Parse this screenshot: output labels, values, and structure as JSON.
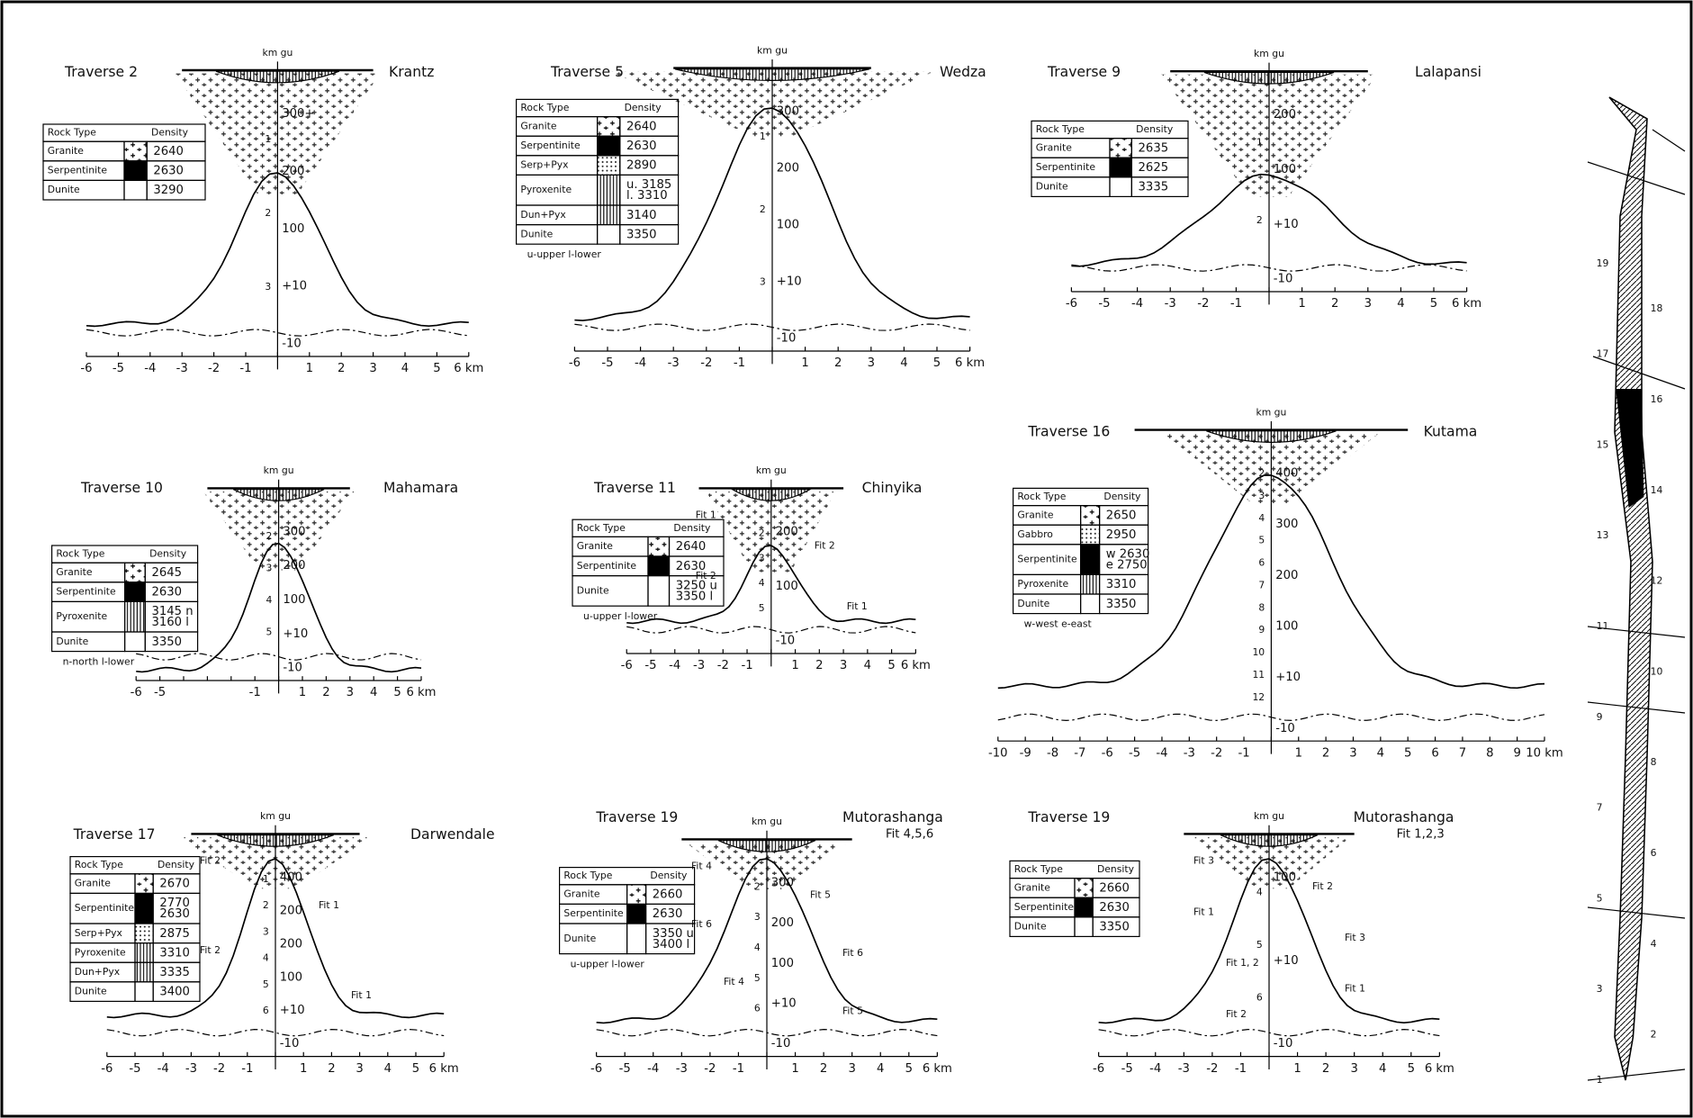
{
  "panels": [
    {
      "title": "Traverse 2",
      "place": "Krantz",
      "header": "km gu",
      "gu": [
        "300+",
        "200",
        "100",
        "+10",
        "-10"
      ],
      "depth": [
        "1",
        "2",
        "3"
      ],
      "x_labels": [
        "-6",
        "-5",
        "-4",
        "-3",
        "-2",
        "-1",
        null,
        "1",
        "2",
        "3",
        "4",
        "5",
        "6 km"
      ],
      "table": {
        "header": [
          "Rock Type",
          "Density"
        ],
        "rows": [
          {
            "rock": "Granite",
            "fill": "cross",
            "density": [
              "2640"
            ]
          },
          {
            "rock": "Serpentinite",
            "fill": "solid",
            "density": [
              "2630"
            ]
          },
          {
            "rock": "Dunite",
            "fill": "none",
            "density": [
              "3290"
            ]
          }
        ]
      }
    },
    {
      "title": "Traverse 5",
      "place": "Wedza",
      "header": "km gu",
      "gu": [
        "300",
        "200",
        "100",
        "+10",
        "-10"
      ],
      "depth": [
        "1",
        "2",
        "3"
      ],
      "x_labels": [
        "-6",
        "-5",
        "-4",
        "-3",
        "-2",
        "-1",
        null,
        "1",
        "2",
        "3",
        "4",
        "5",
        "6 km"
      ],
      "note": "u-upper  l-lower",
      "table": {
        "header": [
          "Rock Type",
          "Density"
        ],
        "rows": [
          {
            "rock": "Granite",
            "fill": "cross",
            "density": [
              "2640"
            ]
          },
          {
            "rock": "Serpentinite",
            "fill": "solid",
            "density": [
              "2630"
            ]
          },
          {
            "rock": "Serp+Pyx",
            "fill": "dots",
            "density": [
              "2890"
            ]
          },
          {
            "rock": "Pyroxenite",
            "fill": "lines",
            "density": [
              "u. 3185",
              "l. 3310"
            ]
          },
          {
            "rock": "Dun+Pyx",
            "fill": "lines",
            "density": [
              "3140"
            ]
          },
          {
            "rock": "Dunite",
            "fill": "none",
            "density": [
              "3350"
            ]
          }
        ]
      }
    },
    {
      "title": "Traverse 9",
      "place": "Lalapansi",
      "header": "km gu",
      "gu": [
        "200",
        "100",
        "+10",
        "-10"
      ],
      "depth": [
        "1",
        "2"
      ],
      "x_labels": [
        "-6",
        "-5",
        "-4",
        "-3",
        "-2",
        "-1",
        null,
        "1",
        "2",
        "3",
        "4",
        "5",
        "6 km"
      ],
      "table": {
        "header": [
          "Rock Type",
          "Density"
        ],
        "rows": [
          {
            "rock": "Granite",
            "fill": "cross",
            "density": [
              "2635"
            ]
          },
          {
            "rock": "Serpentinite",
            "fill": "solid",
            "density": [
              "2625"
            ]
          },
          {
            "rock": "Dunite",
            "fill": "none",
            "density": [
              "3335"
            ]
          }
        ]
      }
    },
    {
      "title": "Traverse 10",
      "place": "Mahamara",
      "header": "km gu",
      "gu": [
        "300",
        "200",
        "100",
        "+10",
        "-10"
      ],
      "depth": [
        "2",
        "3",
        "4",
        "5"
      ],
      "x_labels": [
        "-6",
        "-5",
        null,
        null,
        null,
        "-1",
        null,
        "1",
        "2",
        "3",
        "4",
        "5",
        "6 km"
      ],
      "note": "n-north  l-lower",
      "table": {
        "header": [
          "Rock Type",
          "Density"
        ],
        "rows": [
          {
            "rock": "Granite",
            "fill": "cross",
            "density": [
              "2645"
            ]
          },
          {
            "rock": "Serpentinite",
            "fill": "solid",
            "density": [
              "2630"
            ]
          },
          {
            "rock": "Pyroxenite",
            "fill": "lines",
            "density": [
              "3145 n",
              "3160 l"
            ]
          },
          {
            "rock": "Dunite",
            "fill": "none",
            "density": [
              "3350"
            ]
          }
        ]
      }
    },
    {
      "title": "Traverse 11",
      "place": "Chinyika",
      "header": "km gu",
      "gu": [
        "200",
        "100",
        "-10"
      ],
      "depth": [
        "2",
        "3",
        "4",
        "5"
      ],
      "fits": [
        "Fit 1",
        "Fit 2",
        "Fit 2",
        "Fit 1"
      ],
      "x_labels": [
        "-6",
        "-5",
        "-4",
        "-3",
        "-2",
        "-1",
        null,
        "1",
        "2",
        "3",
        "4",
        "5",
        "6 km"
      ],
      "note": "u-upper  l-lower",
      "table": {
        "header": [
          "Rock Type",
          "Density"
        ],
        "rows": [
          {
            "rock": "Granite",
            "fill": "cross",
            "density": [
              "2640"
            ]
          },
          {
            "rock": "Serpentinite",
            "fill": "solid",
            "density": [
              "2630"
            ]
          },
          {
            "rock": "Dunite",
            "fill": "none",
            "density": [
              "3250 u",
              "3350 l"
            ]
          }
        ]
      }
    },
    {
      "title": "Traverse 16",
      "place": "Kutama",
      "header": "km gu",
      "gu": [
        "400",
        "300",
        "200",
        "100",
        "+10",
        "-10"
      ],
      "depth": [
        "2",
        "3",
        "4",
        "5",
        "6",
        "7",
        "8",
        "9",
        "10",
        "11",
        "12"
      ],
      "x_labels": [
        "-10",
        "-9",
        "-8",
        "-7",
        "-6",
        "-5",
        "-4",
        "-3",
        "-2",
        "-1",
        null,
        "1",
        "2",
        "3",
        "4",
        "5",
        "6",
        "7",
        "8",
        "9",
        "10 km"
      ],
      "note": "w-west  e-east",
      "table": {
        "header": [
          "Rock Type",
          "Density"
        ],
        "rows": [
          {
            "rock": "Granite",
            "fill": "cross",
            "density": [
              "2650"
            ]
          },
          {
            "rock": "Gabbro",
            "fill": "dots",
            "density": [
              "2950"
            ]
          },
          {
            "rock": "Serpentinite",
            "fill": "solid",
            "density": [
              "w 2630",
              "e 2750"
            ]
          },
          {
            "rock": "Pyroxenite",
            "fill": "lines",
            "density": [
              "3310"
            ]
          },
          {
            "rock": "Dunite",
            "fill": "none",
            "density": [
              "3350"
            ]
          }
        ]
      }
    },
    {
      "title": "Traverse 17",
      "place": "Darwendale",
      "header": "km gu",
      "gu": [
        "400",
        "200",
        "200",
        "100",
        "+10",
        "-10"
      ],
      "depth": [
        "1",
        "2",
        "3",
        "4",
        "5",
        "6"
      ],
      "fits": [
        "Fit 2",
        "Fit 1",
        "Fit 2",
        "Fit 1"
      ],
      "x_labels": [
        "-6",
        "-5",
        "-4",
        "-3",
        "-2",
        "-1",
        null,
        "1",
        "2",
        "3",
        "4",
        "5",
        "6 km"
      ],
      "table": {
        "header": [
          "Rock Type",
          "Density"
        ],
        "rows": [
          {
            "rock": "Granite",
            "fill": "cross",
            "density": [
              "2670"
            ]
          },
          {
            "rock": "Serpentinite",
            "fill": "solid",
            "density": [
              "2770",
              "2630"
            ]
          },
          {
            "rock": "Serp+Pyx",
            "fill": "dots",
            "density": [
              "2875"
            ]
          },
          {
            "rock": "Pyroxenite",
            "fill": "lines",
            "density": [
              "3310"
            ]
          },
          {
            "rock": "Dun+Pyx",
            "fill": "lines",
            "density": [
              "3335"
            ]
          },
          {
            "rock": "Dunite",
            "fill": "none",
            "density": [
              "3400"
            ]
          }
        ]
      }
    },
    {
      "title": "Traverse 19",
      "place": "Mutorashanga",
      "place2": "Fit 4,5,6",
      "header": "km gu",
      "gu": [
        "300",
        "200",
        "100",
        "+10",
        "-10"
      ],
      "depth": [
        "2",
        "3",
        "4",
        "5",
        "6"
      ],
      "fits": [
        "Fit 4",
        "Fit 5",
        "Fit 6",
        "Fit 6",
        "Fit 4",
        "Fit 5"
      ],
      "x_labels": [
        "-6",
        "-5",
        "-4",
        "-3",
        "-2",
        "-1",
        null,
        "1",
        "2",
        "3",
        "4",
        "5",
        "6 km"
      ],
      "note": "u-upper  l-lower",
      "table": {
        "header": [
          "Rock Type",
          "Density"
        ],
        "rows": [
          {
            "rock": "Granite",
            "fill": "cross",
            "density": [
              "2660"
            ]
          },
          {
            "rock": "Serpentinite",
            "fill": "solid",
            "density": [
              "2630"
            ]
          },
          {
            "rock": "Dunite",
            "fill": "none",
            "density": [
              "3350 u",
              "3400 l"
            ]
          }
        ]
      }
    },
    {
      "title": "Traverse 19",
      "place": "Mutorashanga",
      "place2": "Fit 1,2,3",
      "header": "km gu",
      "gu": [
        "100",
        "+10",
        "-10"
      ],
      "depth": [
        "4",
        "5",
        "6"
      ],
      "fits": [
        "Fit 3",
        "Fit 2",
        "Fit 1",
        "Fit 3",
        "Fit 1, 2",
        "Fit 1",
        "Fit 2"
      ],
      "x_labels": [
        "-6",
        "-5",
        "-4",
        "-3",
        "-2",
        "-1",
        null,
        "1",
        "2",
        "3",
        "4",
        "5",
        "6 km"
      ],
      "table": {
        "header": [
          "Rock Type",
          "Density"
        ],
        "rows": [
          {
            "rock": "Granite",
            "fill": "cross",
            "density": [
              "2660"
            ]
          },
          {
            "rock": "Serpentinite",
            "fill": "solid",
            "density": [
              "2630"
            ]
          },
          {
            "rock": "Dunite",
            "fill": "none",
            "density": [
              "3350"
            ]
          }
        ]
      }
    }
  ],
  "map": {
    "labels": [
      "1",
      "2",
      "3",
      "4",
      "5",
      "6",
      "7",
      "8",
      "9",
      "10",
      "11",
      "12",
      "13",
      "14",
      "15",
      "16",
      "17",
      "18",
      "19"
    ]
  }
}
